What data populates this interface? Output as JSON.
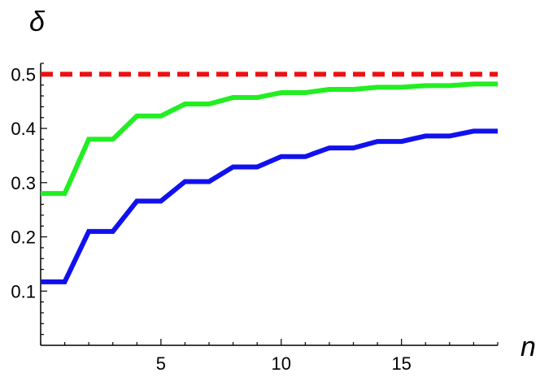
{
  "chart_data": {
    "type": "line",
    "title": "",
    "xlabel": "n",
    "ylabel": "δ",
    "xlim": [
      0,
      19
    ],
    "ylim": [
      0,
      0.52
    ],
    "x_ticks": [
      5,
      10,
      15
    ],
    "x_tick_labels": [
      "5",
      "10",
      "15"
    ],
    "y_ticks": [
      0.1,
      0.2,
      0.3,
      0.4,
      0.5
    ],
    "y_tick_labels": [
      "0.1",
      "0.2",
      "0.3",
      "0.4",
      "0.5"
    ],
    "grid": false,
    "legend": "none",
    "x": [
      0,
      1,
      2,
      3,
      4,
      5,
      6,
      7,
      8,
      9,
      10,
      11,
      12,
      13,
      14,
      15,
      16,
      17,
      18,
      19
    ],
    "series": [
      {
        "color": "#22ee22",
        "style": "solid",
        "values": [
          0.28,
          0.28,
          0.38,
          0.38,
          0.423,
          0.423,
          0.445,
          0.445,
          0.457,
          0.457,
          0.466,
          0.466,
          0.472,
          0.472,
          0.476,
          0.476,
          0.479,
          0.479,
          0.482,
          0.482
        ]
      },
      {
        "color": "#1111ee",
        "style": "solid",
        "values": [
          0.117,
          0.117,
          0.21,
          0.21,
          0.266,
          0.266,
          0.302,
          0.302,
          0.329,
          0.329,
          0.348,
          0.348,
          0.364,
          0.364,
          0.376,
          0.376,
          0.386,
          0.386,
          0.395,
          0.395
        ]
      },
      {
        "color": "#ee1111",
        "style": "dashed",
        "values": [
          0.5,
          0.5,
          0.5,
          0.5,
          0.5,
          0.5,
          0.5,
          0.5,
          0.5,
          0.5,
          0.5,
          0.5,
          0.5,
          0.5,
          0.5,
          0.5,
          0.5,
          0.5,
          0.5,
          0.5
        ]
      }
    ]
  }
}
